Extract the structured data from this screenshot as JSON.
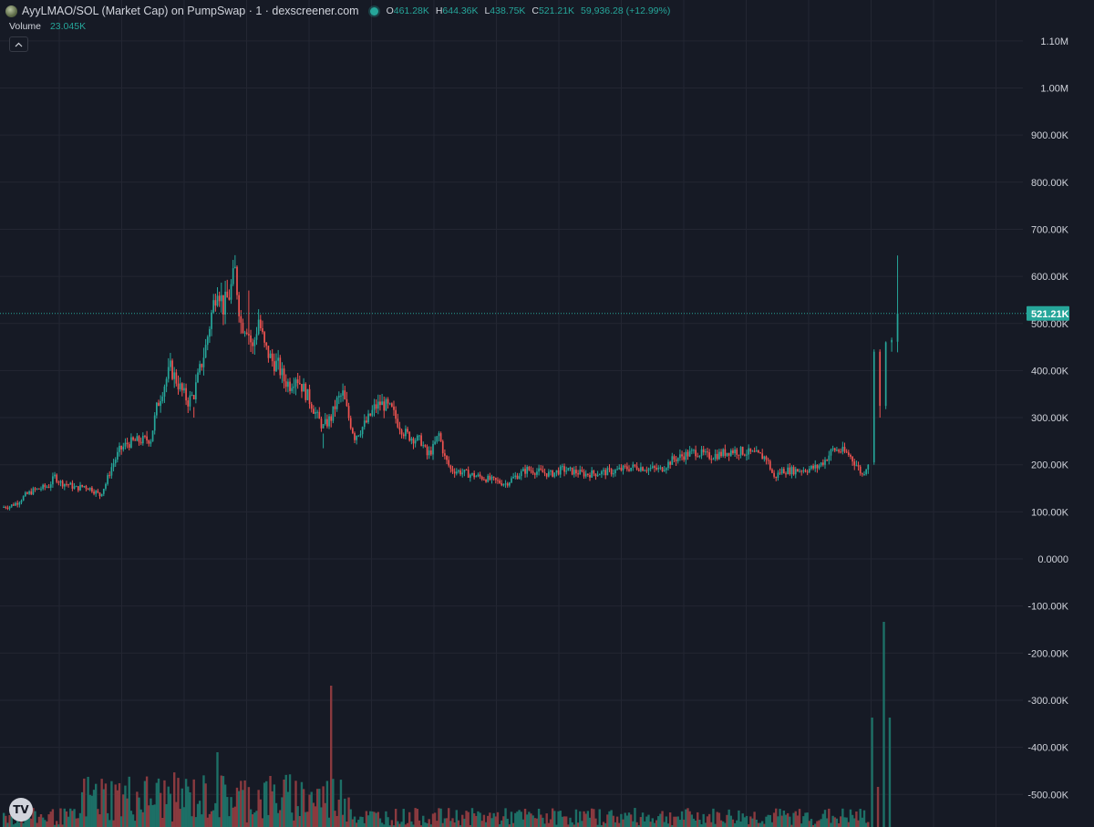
{
  "header": {
    "title": "AyyLMAO/SOL (Market Cap) on PumpSwap · 1 · dexscreener.com",
    "o_label": "O",
    "o_value": "461.28K",
    "h_label": "H",
    "h_value": "644.36K",
    "l_label": "L",
    "l_value": "438.75K",
    "c_label": "C",
    "c_value": "521.21K",
    "change": "59,936.28 (+12.99%)"
  },
  "volume_legend": {
    "label": "Volume",
    "value": "23.045K"
  },
  "logo_text": "TV",
  "icons": [
    "token-icon",
    "live-dot-icon",
    "chevron-up-icon",
    "tradingview-logo-icon"
  ],
  "colors": {
    "background": "#161a25",
    "grid": "#232632",
    "up": "#26a69a",
    "down": "#ef5350",
    "up_volume": "#1d6f66",
    "down_volume": "#8a3a3f",
    "text": "#d1d4dc"
  },
  "chart_data": {
    "type": "candlestick",
    "title": "AyyLMAO/SOL (Market Cap) on PumpSwap · 1 · dexscreener.com",
    "yticks": [
      "1.10M",
      "1.00M",
      "900.00K",
      "800.00K",
      "700.00K",
      "600.00K",
      "500.00K",
      "400.00K",
      "300.00K",
      "200.00K",
      "100.00K",
      "0.0000",
      "-100.00K",
      "-200.00K",
      "-300.00K",
      "-400.00K",
      "-500.00K"
    ],
    "ylim": [
      -560000,
      1130000
    ],
    "last_price": 521210,
    "last_price_label": "521.21K",
    "grid": true,
    "close_path": [
      [
        0,
        110
      ],
      [
        4,
        112
      ],
      [
        8,
        120
      ],
      [
        12,
        135
      ],
      [
        16,
        145
      ],
      [
        20,
        150
      ],
      [
        24,
        155
      ],
      [
        27,
        175
      ],
      [
        30,
        162
      ],
      [
        34,
        158
      ],
      [
        38,
        150
      ],
      [
        42,
        155
      ],
      [
        46,
        148
      ],
      [
        50,
        135
      ],
      [
        53,
        160
      ],
      [
        56,
        195
      ],
      [
        60,
        230
      ],
      [
        64,
        245
      ],
      [
        68,
        250
      ],
      [
        72,
        252
      ],
      [
        76,
        255
      ],
      [
        79,
        320
      ],
      [
        82,
        360
      ],
      [
        86,
        405
      ],
      [
        89,
        380
      ],
      [
        92,
        355
      ],
      [
        95,
        335
      ],
      [
        98,
        350
      ],
      [
        101,
        400
      ],
      [
        104,
        450
      ],
      [
        107,
        520
      ],
      [
        110,
        585
      ],
      [
        113,
        535
      ],
      [
        116,
        560
      ],
      [
        119,
        610
      ],
      [
        122,
        500
      ],
      [
        125,
        495
      ],
      [
        128,
        445
      ],
      [
        131,
        510
      ],
      [
        134,
        450
      ],
      [
        138,
        420
      ],
      [
        141,
        410
      ],
      [
        144,
        380
      ],
      [
        147,
        370
      ],
      [
        150,
        390
      ],
      [
        154,
        360
      ],
      [
        158,
        330
      ],
      [
        161,
        300
      ],
      [
        164,
        280
      ],
      [
        168,
        300
      ],
      [
        171,
        335
      ],
      [
        174,
        350
      ],
      [
        177,
        300
      ],
      [
        180,
        260
      ],
      [
        183,
        275
      ],
      [
        186,
        290
      ],
      [
        190,
        320
      ],
      [
        193,
        330
      ],
      [
        196,
        325
      ],
      [
        199,
        315
      ],
      [
        202,
        290
      ],
      [
        205,
        270
      ],
      [
        208,
        260
      ],
      [
        211,
        255
      ],
      [
        214,
        250
      ],
      [
        217,
        220
      ],
      [
        220,
        235
      ],
      [
        223,
        265
      ],
      [
        226,
        215
      ],
      [
        229,
        190
      ],
      [
        234,
        185
      ],
      [
        240,
        178
      ],
      [
        246,
        172
      ],
      [
        252,
        165
      ],
      [
        257,
        160
      ],
      [
        262,
        175
      ],
      [
        268,
        190
      ],
      [
        274,
        185
      ],
      [
        280,
        180
      ],
      [
        286,
        190
      ],
      [
        292,
        185
      ],
      [
        298,
        180
      ],
      [
        305,
        183
      ],
      [
        312,
        186
      ],
      [
        318,
        192
      ],
      [
        324,
        196
      ],
      [
        330,
        192
      ],
      [
        336,
        190
      ],
      [
        342,
        210
      ],
      [
        348,
        220
      ],
      [
        354,
        228
      ],
      [
        360,
        218
      ],
      [
        366,
        222
      ],
      [
        372,
        230
      ],
      [
        378,
        228
      ],
      [
        384,
        222
      ],
      [
        390,
        215
      ],
      [
        394,
        172
      ],
      [
        398,
        188
      ],
      [
        404,
        188
      ],
      [
        410,
        190
      ],
      [
        416,
        195
      ],
      [
        420,
        210
      ],
      [
        424,
        232
      ],
      [
        428,
        230
      ],
      [
        432,
        222
      ],
      [
        436,
        200
      ],
      [
        439,
        178
      ],
      [
        442,
        205
      ],
      [
        445,
        440
      ],
      [
        448,
        330
      ],
      [
        451,
        460
      ],
      [
        454,
        470
      ],
      [
        457,
        521
      ]
    ],
    "spike_candles": [
      {
        "t": 445,
        "o": 205,
        "h": 445,
        "l": 200,
        "c": 440
      },
      {
        "t": 448,
        "o": 440,
        "h": 445,
        "l": 300,
        "c": 325
      },
      {
        "t": 451,
        "o": 325,
        "h": 462,
        "l": 318,
        "c": 460
      },
      {
        "t": 454,
        "o": 460,
        "h": 470,
        "l": 440,
        "c": 465
      },
      {
        "t": 457,
        "o": 461.28,
        "h": 644.36,
        "l": 438.75,
        "c": 521.21
      }
    ],
    "wick_extremes": [
      {
        "t": 119,
        "h": 645
      },
      {
        "t": 126,
        "h": 570
      },
      {
        "t": 164,
        "h": 235
      },
      {
        "t": 98,
        "h": 300
      }
    ],
    "volume_spikes": [
      {
        "t": 168,
        "v": 155,
        "up": false
      },
      {
        "t": 110,
        "v": 82,
        "up": true
      },
      {
        "t": 444,
        "v": 120,
        "up": true
      },
      {
        "t": 447,
        "v": 44,
        "up": false
      },
      {
        "t": 450,
        "v": 225,
        "up": true
      },
      {
        "t": 453,
        "v": 120,
        "up": true
      }
    ]
  }
}
